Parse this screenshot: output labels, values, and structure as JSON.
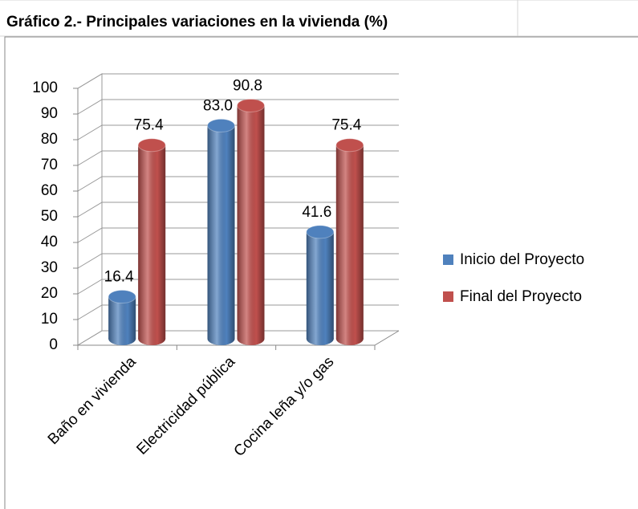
{
  "chart_data": {
    "type": "bar3d",
    "title": "Gráfico 2.- Principales variaciones en la vivienda (%)",
    "categories": [
      "Baño en vivienda",
      "Electricidad pública",
      "Cocina leña y/o gas"
    ],
    "series": [
      {
        "name": "Inicio del Proyecto",
        "color": "#4f81bd",
        "values": [
          16.4,
          83.0,
          41.6
        ],
        "value_labels": [
          "16.4",
          "83.0",
          "41.6"
        ]
      },
      {
        "name": "Final del Proyecto",
        "color": "#c0504d",
        "values": [
          75.4,
          90.8,
          75.4
        ],
        "value_labels": [
          "75.4",
          "90.8",
          "75.4"
        ]
      }
    ],
    "ylim": [
      0,
      100
    ],
    "yticks": [
      0,
      10,
      20,
      30,
      40,
      50,
      60,
      70,
      80,
      90,
      100
    ],
    "grid": true,
    "legend": "right"
  }
}
